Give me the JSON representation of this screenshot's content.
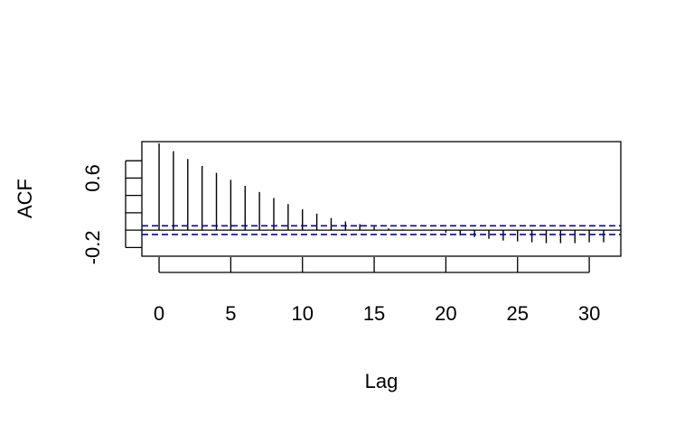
{
  "chart_data": {
    "type": "bar",
    "xlabel": "Lag",
    "ylabel": "ACF",
    "xlim": [
      -1.2,
      32.2
    ],
    "ylim": [
      -0.3,
      1.02
    ],
    "x_ticks": [
      0,
      5,
      10,
      15,
      20,
      25,
      30
    ],
    "x_tick_labels": [
      "0",
      "5",
      "10",
      "15",
      "20",
      "25",
      "30"
    ],
    "y_ticks": [
      -0.2,
      0,
      0.2,
      0.4,
      0.6,
      0.8
    ],
    "y_tick_labels": [
      "-0.2",
      "",
      "",
      "",
      "0.6",
      ""
    ],
    "lags": [
      0,
      1,
      2,
      3,
      4,
      5,
      6,
      7,
      8,
      9,
      10,
      11,
      12,
      13,
      14,
      15,
      16,
      17,
      18,
      19,
      20,
      21,
      22,
      23,
      24,
      25,
      26,
      27,
      28,
      29,
      30,
      31
    ],
    "acf": [
      1.0,
      0.91,
      0.82,
      0.74,
      0.66,
      0.58,
      0.51,
      0.44,
      0.37,
      0.3,
      0.24,
      0.19,
      0.14,
      0.1,
      0.07,
      0.04,
      0.02,
      0.01,
      0.0,
      -0.01,
      -0.03,
      -0.06,
      -0.08,
      -0.1,
      -0.12,
      -0.13,
      -0.14,
      -0.15,
      -0.15,
      -0.15,
      -0.14,
      -0.14
    ],
    "confidence_bounds": [
      0.05,
      -0.05
    ],
    "line_color": "#000000",
    "confidence_color": "#0000cc",
    "grid": false
  }
}
